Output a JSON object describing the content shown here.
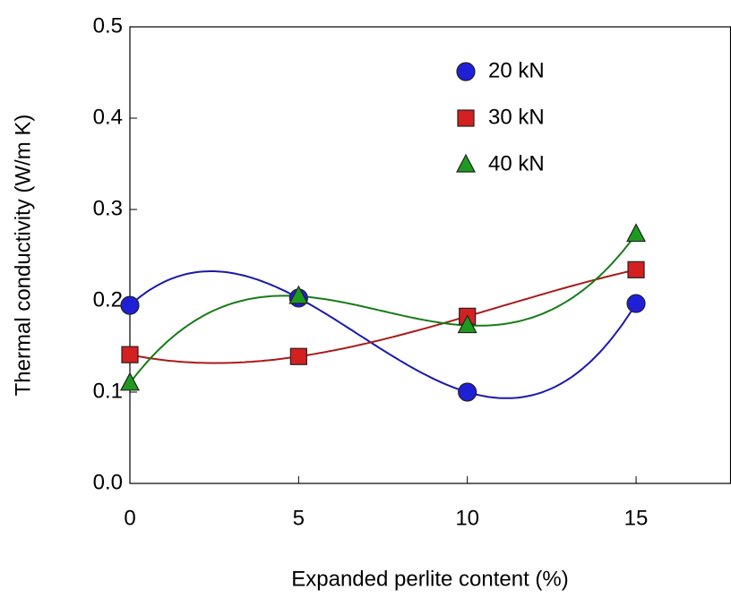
{
  "chart_data": {
    "type": "scatter",
    "x_label": "Expanded perlite content (%)",
    "y_label": "Thermal conductivity (W/m K)",
    "x": [
      0,
      5,
      10,
      15
    ],
    "series": [
      {
        "name": "20 kN",
        "color": "#1f1fd6",
        "marker": "circle",
        "values": [
          0.195,
          0.203,
          0.1,
          0.197
        ]
      },
      {
        "name": "30 kN",
        "color": "#d42020",
        "marker": "square",
        "values": [
          0.141,
          0.139,
          0.183,
          0.234
        ]
      },
      {
        "name": "40 kN",
        "color": "#1e9a1e",
        "marker": "triangle",
        "values": [
          0.11,
          0.205,
          0.173,
          0.273
        ]
      }
    ],
    "xlim": [
      0,
      17.8
    ],
    "xticks": [
      0,
      5,
      10,
      15
    ],
    "ylim": [
      0,
      0.5
    ],
    "yticks": [
      {
        "value": 0,
        "label": "0.0"
      },
      0.1,
      0.2,
      0.3,
      0.4,
      0.5
    ],
    "legend": "upper right"
  }
}
